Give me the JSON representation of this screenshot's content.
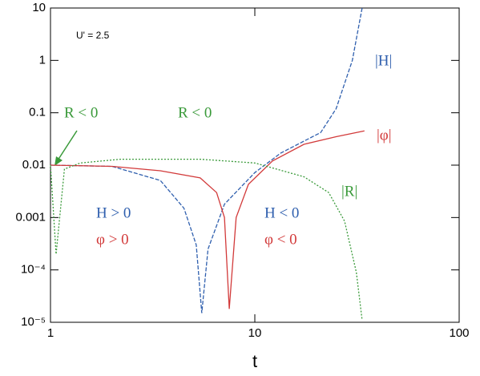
{
  "chart_data": {
    "type": "line",
    "x_label": "t",
    "xscale": "log",
    "yscale": "log",
    "xlim": [
      1,
      100
    ],
    "xticks": [
      1,
      10,
      100
    ],
    "ylim": [
      1e-05,
      10
    ],
    "yticks": [
      {
        "value": 1e-05,
        "label": "10⁻⁵"
      },
      {
        "value": 0.0001,
        "label": "10⁻⁴"
      },
      0.001,
      0.01,
      0.1,
      1,
      10
    ],
    "annotations": [
      "U' = 2.5",
      "R < 0",
      "R < 0",
      "H > 0",
      "φ > 0",
      "H < 0",
      "φ < 0"
    ],
    "series": [
      {
        "name": "|H|",
        "color": "#2f5fae",
        "line_style": "dashed",
        "x": [
          1,
          2,
          3.45,
          4.5,
          5.17,
          5.5,
          5.9,
          7.1,
          10,
          13.4,
          21,
          25,
          30,
          33.5
        ],
        "values": [
          0.01,
          0.0095,
          0.0051,
          0.0015,
          0.0003,
          1.5e-05,
          0.00025,
          0.0018,
          0.0072,
          0.017,
          0.042,
          0.12,
          1,
          10
        ]
      },
      {
        "name": "|φ|",
        "color": "#d23a3a",
        "line_style": "solid",
        "x": [
          1,
          2,
          3.45,
          5.4,
          6.5,
          7.1,
          7.5,
          8.1,
          9.3,
          12.2,
          17.4,
          25,
          34.4
        ],
        "values": [
          0.01,
          0.0095,
          0.0078,
          0.0057,
          0.003,
          0.001,
          1.8e-05,
          0.001,
          0.0043,
          0.012,
          0.025,
          0.035,
          0.045
        ]
      },
      {
        "name": "|R|",
        "color": "#3a9a3a",
        "line_style": "dotted",
        "x": [
          1,
          1.065,
          1.17,
          1.4,
          2.2,
          5.4,
          10,
          17.4,
          23,
          27.5,
          31.4,
          33.5
        ],
        "values": [
          0.01,
          0.0002,
          0.0084,
          0.011,
          0.013,
          0.013,
          0.011,
          0.006,
          0.003,
          0.00085,
          9e-05,
          1.1e-05
        ]
      }
    ]
  }
}
